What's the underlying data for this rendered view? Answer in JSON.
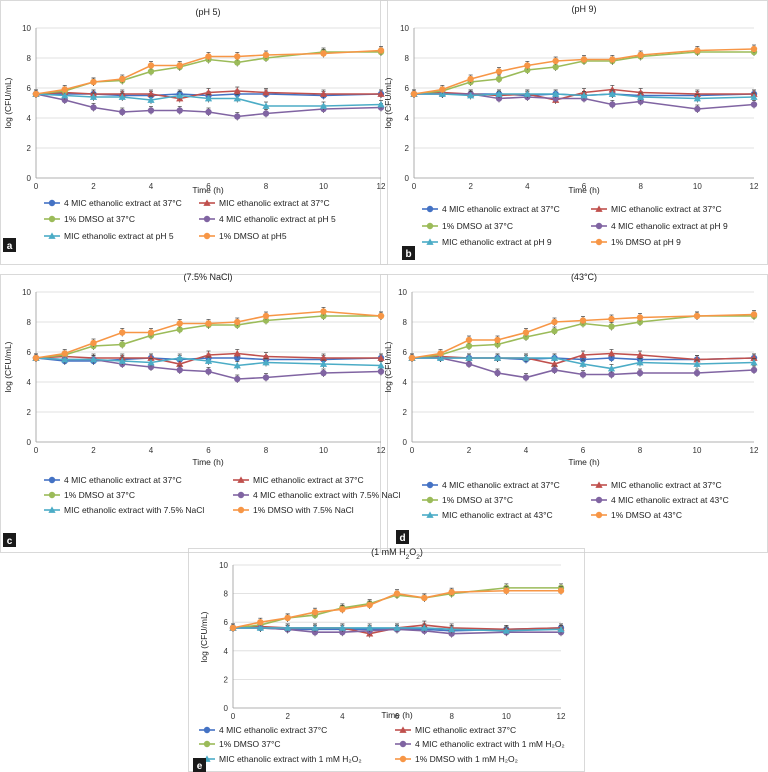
{
  "colors": {
    "s1": "#4472c4",
    "s2": "#c0504d",
    "s3": "#9bbb59",
    "s4": "#8064a2",
    "s5": "#4bacc6",
    "s6": "#f79646",
    "label_bg": "#1a1a1a",
    "grid": "#d9d9d9"
  },
  "chart_data": [
    {
      "type": "line",
      "panel_label": "a",
      "title": "(pH 5)",
      "xlabel": "Time (h)",
      "ylabel": "log (CFU/mL)",
      "xlim": [
        0,
        12
      ],
      "ylim": [
        0,
        10
      ],
      "xticks": [
        0,
        2,
        4,
        6,
        8,
        10,
        12
      ],
      "yticks": [
        0,
        2,
        4,
        6,
        8,
        10
      ],
      "grid": "horizontal",
      "legend_position": "bottom",
      "x": [
        0,
        1,
        2,
        3,
        4,
        5,
        6,
        7,
        8,
        10,
        12
      ],
      "series": [
        {
          "name": "4 MIC ethanolic extract at 37°C",
          "values": [
            5.6,
            5.6,
            5.6,
            5.5,
            5.5,
            5.6,
            5.5,
            5.6,
            5.6,
            5.5,
            5.6
          ]
        },
        {
          "name": "MIC ethanolic extract at 37°C",
          "values": [
            5.6,
            5.7,
            5.6,
            5.6,
            5.6,
            5.3,
            5.7,
            5.8,
            5.7,
            5.6,
            5.6
          ]
        },
        {
          "name": "1% DMSO at 37°C",
          "values": [
            5.6,
            5.8,
            6.4,
            6.5,
            7.1,
            7.4,
            7.9,
            7.7,
            8.0,
            8.4,
            8.4
          ]
        },
        {
          "name": "4 MIC ethanolic extract at pH 5",
          "values": [
            5.6,
            5.2,
            4.7,
            4.4,
            4.5,
            4.5,
            4.4,
            4.1,
            4.3,
            4.6,
            4.7
          ]
        },
        {
          "name": "MIC ethanolic extract at pH 5",
          "values": [
            5.6,
            5.5,
            5.4,
            5.4,
            5.2,
            5.5,
            5.3,
            5.3,
            4.8,
            4.8,
            4.9
          ]
        },
        {
          "name": "1% DMSO at pH5",
          "values": [
            5.6,
            5.9,
            6.4,
            6.6,
            7.5,
            7.5,
            8.1,
            8.1,
            8.2,
            8.3,
            8.5
          ]
        }
      ]
    },
    {
      "type": "line",
      "panel_label": "b",
      "title": "(pH 9)",
      "xlabel": "Time (h)",
      "ylabel": "log (CFU/mL)",
      "xlim": [
        0,
        12
      ],
      "ylim": [
        0,
        10
      ],
      "xticks": [
        0,
        2,
        4,
        6,
        8,
        10,
        12
      ],
      "yticks": [
        0,
        2,
        4,
        6,
        8,
        10
      ],
      "grid": "horizontal",
      "legend_position": "bottom",
      "x": [
        0,
        1,
        2,
        3,
        4,
        5,
        6,
        7,
        8,
        10,
        12
      ],
      "series": [
        {
          "name": "4 MIC ethanolic extract at 37°C",
          "values": [
            5.6,
            5.6,
            5.6,
            5.6,
            5.5,
            5.6,
            5.5,
            5.6,
            5.5,
            5.5,
            5.6
          ]
        },
        {
          "name": "MIC ethanolic extract at 37°C",
          "values": [
            5.6,
            5.7,
            5.6,
            5.5,
            5.6,
            5.2,
            5.7,
            5.9,
            5.7,
            5.6,
            5.6
          ]
        },
        {
          "name": "1% DMSO at 37°C",
          "values": [
            5.6,
            5.8,
            6.4,
            6.6,
            7.2,
            7.4,
            7.8,
            7.8,
            8.1,
            8.4,
            8.4
          ]
        },
        {
          "name": "4 MIC ethanolic extract at pH 9",
          "values": [
            5.6,
            5.6,
            5.6,
            5.3,
            5.4,
            5.3,
            5.3,
            4.9,
            5.1,
            4.6,
            4.9
          ]
        },
        {
          "name": "MIC ethanolic extract at pH 9",
          "values": [
            5.6,
            5.6,
            5.5,
            5.6,
            5.6,
            5.6,
            5.5,
            5.6,
            5.4,
            5.3,
            5.4
          ]
        },
        {
          "name": "1% DMSO at pH 9",
          "values": [
            5.6,
            5.9,
            6.6,
            7.1,
            7.5,
            7.8,
            7.9,
            7.9,
            8.2,
            8.5,
            8.6
          ]
        }
      ]
    },
    {
      "type": "line",
      "panel_label": "c",
      "title": "(7.5% NaCl)",
      "xlabel": "Time (h)",
      "ylabel": "log (CFU/mL)",
      "xlim": [
        0,
        12
      ],
      "ylim": [
        0,
        10
      ],
      "xticks": [
        0,
        2,
        4,
        6,
        8,
        10,
        12
      ],
      "yticks": [
        0,
        2,
        4,
        6,
        8,
        10
      ],
      "grid": "horizontal",
      "legend_position": "bottom",
      "x": [
        0,
        1,
        2,
        3,
        4,
        5,
        6,
        7,
        8,
        10,
        12
      ],
      "series": [
        {
          "name": "4 MIC ethanolic extract at 37°C",
          "values": [
            5.6,
            5.4,
            5.4,
            5.5,
            5.6,
            5.5,
            5.6,
            5.6,
            5.5,
            5.5,
            5.6
          ]
        },
        {
          "name": "MIC ethanolic extract at 37°C",
          "values": [
            5.6,
            5.7,
            5.6,
            5.6,
            5.6,
            5.2,
            5.8,
            5.9,
            5.7,
            5.6,
            5.6
          ]
        },
        {
          "name": "1% DMSO at 37°C",
          "values": [
            5.6,
            5.8,
            6.4,
            6.5,
            7.1,
            7.5,
            7.8,
            7.8,
            8.1,
            8.4,
            8.4
          ]
        },
        {
          "name": "4 MIC ethanolic extract with 7.5% NaCl",
          "values": [
            5.6,
            5.5,
            5.5,
            5.2,
            5.0,
            4.8,
            4.7,
            4.2,
            4.3,
            4.6,
            4.7
          ]
        },
        {
          "name": "MIC ethanolic extract with 7.5% NaCl",
          "values": [
            5.6,
            5.5,
            5.5,
            5.4,
            5.3,
            5.6,
            5.4,
            5.1,
            5.3,
            5.2,
            5.1
          ]
        },
        {
          "name": "1% DMSO with 7.5% NaCl",
          "values": [
            5.6,
            5.9,
            6.6,
            7.3,
            7.3,
            7.9,
            7.9,
            8.0,
            8.4,
            8.7,
            8.4
          ]
        }
      ]
    },
    {
      "type": "line",
      "panel_label": "d",
      "title": "(43°C)",
      "xlabel": "Time (h)",
      "ylabel": "log (CFU/mL)",
      "xlim": [
        0,
        12
      ],
      "ylim": [
        0,
        10
      ],
      "xticks": [
        0,
        2,
        4,
        6,
        8,
        10,
        12
      ],
      "yticks": [
        0,
        2,
        4,
        6,
        8,
        10
      ],
      "grid": "horizontal",
      "legend_position": "bottom",
      "x": [
        0,
        1,
        2,
        3,
        4,
        5,
        6,
        7,
        8,
        10,
        12
      ],
      "series": [
        {
          "name": "4 MIC ethanolic extract at 37°C",
          "values": [
            5.6,
            5.6,
            5.6,
            5.6,
            5.5,
            5.6,
            5.5,
            5.6,
            5.5,
            5.5,
            5.6
          ]
        },
        {
          "name": "MIC ethanolic extract at 37°C",
          "values": [
            5.6,
            5.7,
            5.6,
            5.6,
            5.6,
            5.2,
            5.8,
            5.9,
            5.8,
            5.5,
            5.6
          ]
        },
        {
          "name": "1% DMSO at 37°C",
          "values": [
            5.6,
            5.8,
            6.4,
            6.5,
            7.0,
            7.4,
            7.9,
            7.7,
            8.0,
            8.4,
            8.4
          ]
        },
        {
          "name": "4 MIC ethanolic extract at 43°C",
          "values": [
            5.6,
            5.6,
            5.2,
            4.6,
            4.3,
            4.8,
            4.5,
            4.5,
            4.6,
            4.6,
            4.8
          ]
        },
        {
          "name": "MIC ethanolic extract at 43°C",
          "values": [
            5.6,
            5.6,
            5.6,
            5.6,
            5.6,
            5.6,
            5.2,
            4.9,
            5.3,
            5.2,
            5.3
          ]
        },
        {
          "name": "1% DMSO at 43°C",
          "values": [
            5.6,
            5.9,
            6.8,
            6.8,
            7.3,
            8.0,
            8.1,
            8.2,
            8.3,
            8.4,
            8.5
          ]
        }
      ]
    },
    {
      "type": "line",
      "panel_label": "e",
      "title_main": "(1 mM H",
      "title_sub": "2",
      "title_sup": "O",
      "title_sub2": "2",
      "title_end": ")",
      "xlabel": "Time (h)",
      "ylabel": "log (CFU/mL)",
      "xlim": [
        0,
        12
      ],
      "ylim": [
        0,
        10
      ],
      "xticks": [
        0,
        2,
        4,
        6,
        8,
        10,
        12
      ],
      "yticks": [
        0,
        2,
        4,
        6,
        8,
        10
      ],
      "grid": "horizontal",
      "legend_position": "bottom",
      "x": [
        0,
        1,
        2,
        3,
        4,
        5,
        6,
        7,
        8,
        10,
        12
      ],
      "series": [
        {
          "name": "4 MIC ethanolic extract 37°C",
          "values": [
            5.6,
            5.6,
            5.5,
            5.5,
            5.5,
            5.5,
            5.5,
            5.5,
            5.4,
            5.5,
            5.6
          ]
        },
        {
          "name": "MIC ethanolic extract 37°C",
          "values": [
            5.6,
            5.7,
            5.6,
            5.6,
            5.6,
            5.2,
            5.6,
            5.8,
            5.6,
            5.5,
            5.6
          ]
        },
        {
          "name": "1% DMSO 37°C",
          "values": [
            5.6,
            5.8,
            6.3,
            6.5,
            7.0,
            7.3,
            7.9,
            7.7,
            8.0,
            8.4,
            8.4
          ]
        },
        {
          "name": "4 MIC ethanolic extract with 1 mM H₂O₂",
          "values": [
            5.6,
            5.6,
            5.5,
            5.3,
            5.3,
            5.4,
            5.5,
            5.4,
            5.2,
            5.3,
            5.3
          ]
        },
        {
          "name": "MIC ethanolic extract with 1 mM H₂O₂",
          "values": [
            5.6,
            5.6,
            5.6,
            5.6,
            5.6,
            5.6,
            5.6,
            5.6,
            5.5,
            5.4,
            5.5
          ]
        },
        {
          "name": "1% DMSO with 1 mM H₂O₂",
          "values": [
            5.6,
            6.0,
            6.3,
            6.7,
            6.9,
            7.2,
            8.0,
            7.7,
            8.1,
            8.2,
            8.2
          ]
        }
      ]
    }
  ]
}
